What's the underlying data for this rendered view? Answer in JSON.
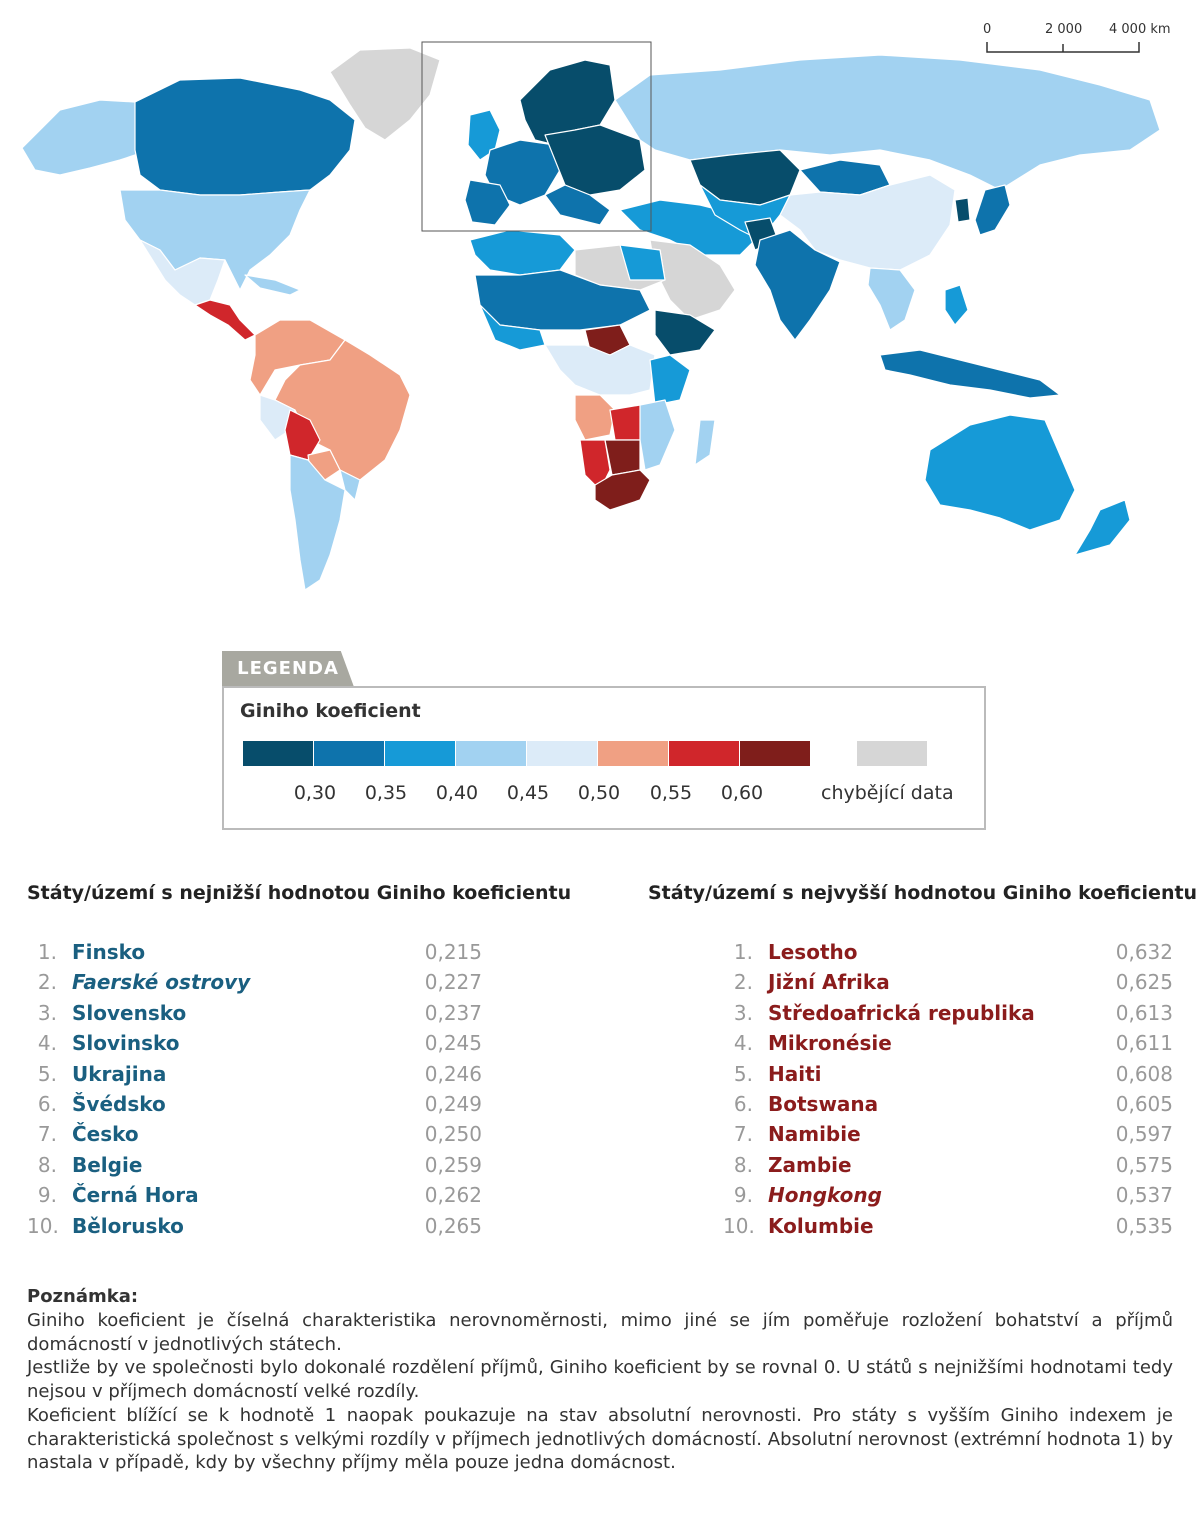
{
  "scale_bar": {
    "labels": [
      "0",
      "2 000",
      "4 000 km"
    ]
  },
  "legend": {
    "tab": "LEGENDA",
    "title": "Giniho koeficient",
    "colors": [
      "#074d6b",
      "#0e73ac",
      "#169ad7",
      "#a2d2f1",
      "#dcebf8",
      "#f0a083",
      "#d0262b",
      "#7f1e1b"
    ],
    "missing_color": "#d6d6d6",
    "ticks": [
      "0,30",
      "0,35",
      "0,40",
      "0,45",
      "0,50",
      "0,55",
      "0,60"
    ],
    "missing_label": "chybějící data"
  },
  "lowest": {
    "title": "Státy/území s nejnižší hodnotou Giniho koeficientu",
    "items": [
      {
        "rank": "1.",
        "name": "Finsko",
        "value": "0,215",
        "italic": false
      },
      {
        "rank": "2.",
        "name": "Faerské ostrovy",
        "value": "0,227",
        "italic": true
      },
      {
        "rank": "3.",
        "name": "Slovensko",
        "value": "0,237",
        "italic": false
      },
      {
        "rank": "4.",
        "name": "Slovinsko",
        "value": "0,245",
        "italic": false
      },
      {
        "rank": "5.",
        "name": "Ukrajina",
        "value": "0,246",
        "italic": false
      },
      {
        "rank": "6.",
        "name": "Švédsko",
        "value": "0,249",
        "italic": false
      },
      {
        "rank": "7.",
        "name": "Česko",
        "value": "0,250",
        "italic": false
      },
      {
        "rank": "8.",
        "name": "Belgie",
        "value": "0,259",
        "italic": false
      },
      {
        "rank": "9.",
        "name": "Černá Hora",
        "value": "0,262",
        "italic": false
      },
      {
        "rank": "10.",
        "name": "Bělorusko",
        "value": "0,265",
        "italic": false
      }
    ]
  },
  "highest": {
    "title": "Státy/území s nejvyšší hodnotou Giniho koeficientu",
    "items": [
      {
        "rank": "1.",
        "name": "Lesotho",
        "value": "0,632",
        "italic": false
      },
      {
        "rank": "2.",
        "name": "Jižní Afrika",
        "value": "0,625",
        "italic": false
      },
      {
        "rank": "3.",
        "name": "Středoafrická republika",
        "value": "0,613",
        "italic": false
      },
      {
        "rank": "4.",
        "name": "Mikronésie",
        "value": "0,611",
        "italic": false
      },
      {
        "rank": "5.",
        "name": "Haiti",
        "value": "0,608",
        "italic": false
      },
      {
        "rank": "6.",
        "name": "Botswana",
        "value": "0,605",
        "italic": false
      },
      {
        "rank": "7.",
        "name": "Namibie",
        "value": "0,597",
        "italic": false
      },
      {
        "rank": "8.",
        "name": "Zambie",
        "value": "0,575",
        "italic": false
      },
      {
        "rank": "9.",
        "name": "Hongkong",
        "value": "0,537",
        "italic": true
      },
      {
        "rank": "10.",
        "name": "Kolumbie",
        "value": "0,535",
        "italic": false
      }
    ]
  },
  "note": {
    "title": "Poznámka:",
    "paragraphs": [
      "Giniho koeficient je číselná charakteristika nerovnoměrnosti, mimo jiné se jím poměřuje rozložení bohatství a příjmů domácností v jednotlivých státech.",
      "Jestliže by ve společnosti bylo dokonalé rozdělení příjmů, Giniho koeficient by se rovnal 0. U států s nejnižšími hodnotami tedy nejsou v příjmech domácností velké rozdíly.",
      "Koeficient blížící se k hodnotě 1 naopak poukazuje na stav absolutní nerovnosti. Pro státy s vyšším Giniho indexem je charakteristická společnost s velkými rozdíly v příjmech jednotlivých domácností. Absolutní nerovnost (extrémní hodnota 1) by nastala v případě, kdy by všechny příjmy měla pouze jedna domácnost."
    ]
  }
}
